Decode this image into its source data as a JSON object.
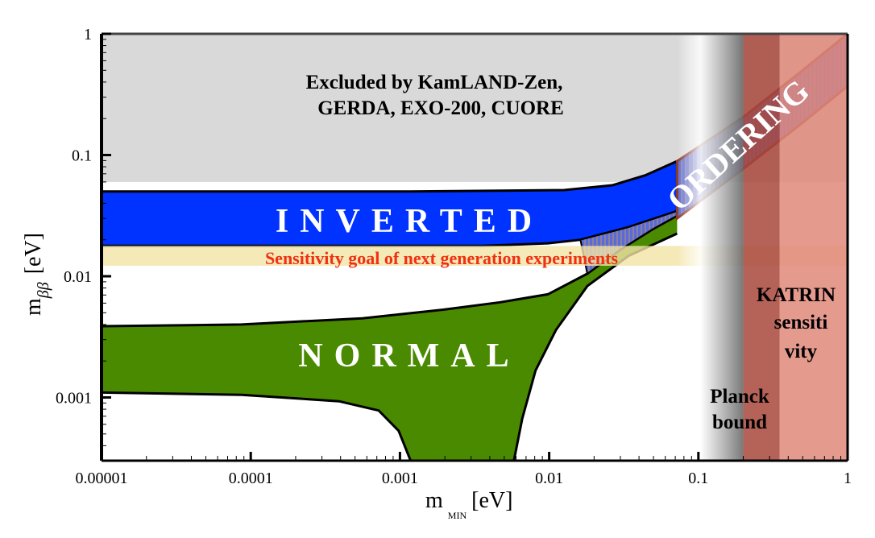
{
  "chart_data": {
    "type": "area",
    "xscale": "log",
    "yscale": "log",
    "xlim": [
      1e-05,
      1
    ],
    "ylim": [
      0.0003,
      1
    ],
    "xlabel": {
      "main": "m",
      "sub": "MIN",
      "unit": "[eV]"
    },
    "ylabel": {
      "main": "m",
      "sub": "ββ",
      "unit": "[eV]"
    },
    "xticks": [
      {
        "v": 1e-05,
        "label": "0.00001"
      },
      {
        "v": 0.0001,
        "label": "0.0001"
      },
      {
        "v": 0.001,
        "label": "0.001"
      },
      {
        "v": 0.01,
        "label": "0.01"
      },
      {
        "v": 0.1,
        "label": "0.1"
      },
      {
        "v": 1,
        "label": "1"
      }
    ],
    "yticks": [
      {
        "v": 0.001,
        "label": "0.001"
      },
      {
        "v": 0.01,
        "label": "0.01"
      },
      {
        "v": 0.1,
        "label": "0.1"
      },
      {
        "v": 1,
        "label": "1"
      }
    ],
    "excluded_region": {
      "ymin": 0.06,
      "ymax": 1,
      "color": "#d9d9d9",
      "label_lines": [
        "Excluded by KamLAND-Zen,",
        "GERDA, EXO-200, CUORE"
      ]
    },
    "sensitivity_band": {
      "ymin": 0.0122,
      "ymax": 0.0178,
      "color": "#f3e3a6",
      "label": "Sensitivity goal of next generation experiments",
      "label_color": "#f03010"
    },
    "inverted": {
      "label": "INVERTED",
      "color": "#0033ff",
      "upper": [
        [
          1e-05,
          0.05
        ],
        [
          0.001,
          0.05
        ],
        [
          0.0126,
          0.0514
        ],
        [
          0.0265,
          0.0563
        ],
        [
          0.044,
          0.068
        ],
        [
          0.072,
          0.089
        ]
      ],
      "lower": [
        [
          1e-05,
          0.0178
        ],
        [
          0.0036,
          0.0178
        ],
        [
          0.0098,
          0.0187
        ],
        [
          0.0162,
          0.02
        ],
        [
          0.034,
          0.0254
        ],
        [
          0.072,
          0.0345
        ]
      ]
    },
    "normal": {
      "label": "NORMAL",
      "color": "#4a8a00",
      "upper": [
        [
          1e-05,
          0.00387
        ],
        [
          8.7e-05,
          0.004
        ],
        [
          0.00056,
          0.0045
        ],
        [
          0.00195,
          0.0053
        ],
        [
          0.0047,
          0.0061
        ],
        [
          0.0098,
          0.0071
        ],
        [
          0.018,
          0.0105
        ],
        [
          0.03,
          0.0166
        ],
        [
          0.049,
          0.0243
        ],
        [
          0.072,
          0.0316
        ]
      ],
      "lower_left": [
        [
          1e-05,
          0.0011
        ],
        [
          8.7e-05,
          0.00105
        ],
        [
          0.00039,
          0.00093
        ],
        [
          0.00072,
          0.00078
        ],
        [
          0.00098,
          0.00053
        ],
        [
          0.00118,
          0.0003
        ]
      ],
      "lower_right": [
        [
          0.0058,
          0.0003
        ],
        [
          0.0066,
          0.00067
        ],
        [
          0.0081,
          0.00167
        ],
        [
          0.0111,
          0.0036
        ],
        [
          0.018,
          0.0083
        ],
        [
          0.034,
          0.0147
        ],
        [
          0.072,
          0.0225
        ]
      ]
    },
    "degenerate": {
      "label": "ORDERING",
      "color": "#7f6aa8",
      "upper": [
        [
          0.072,
          0.089
        ],
        [
          0.2,
          0.206
        ],
        [
          0.5,
          0.5
        ],
        [
          1,
          1
        ]
      ],
      "lower": [
        [
          0.072,
          0.03
        ],
        [
          0.2,
          0.077
        ],
        [
          0.5,
          0.185
        ],
        [
          1,
          0.37
        ]
      ]
    },
    "planck": {
      "xmin": 0.072,
      "xmax": 0.2,
      "label_lines": [
        "Planck",
        "bound"
      ]
    },
    "katrin": {
      "xmin": 0.2,
      "xmax": 0.35,
      "xmax_light": 1,
      "dark_color": "#a8463c",
      "light_color": "#e0887a",
      "label_lines": [
        "KATRIN",
        "sensiti",
        "vity"
      ]
    }
  }
}
